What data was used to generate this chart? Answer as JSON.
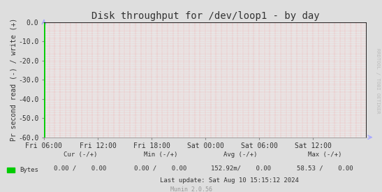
{
  "title": "Disk throughput for /dev/loop1 - by day",
  "ylabel": "Pr second read (-) / write (+)",
  "background_color": "#dedede",
  "plot_bg_color": "#e8e8e8",
  "ylim": [
    -60,
    0
  ],
  "yticks": [
    0.0,
    -10.0,
    -20.0,
    -30.0,
    -40.0,
    -50.0,
    -60.0
  ],
  "xtick_labels": [
    "Fri 06:00",
    "Fri 12:00",
    "Fri 18:00",
    "Sat 00:00",
    "Sat 06:00",
    "Sat 12:00"
  ],
  "n_xticks": 6,
  "green_color": "#00cc00",
  "legend_label": "Bytes",
  "footer_munin": "Munin 2.0.56",
  "watermark": "RRDTOOL / TOBI OETIKER",
  "title_fontsize": 10,
  "axis_fontsize": 7,
  "tick_fontsize": 7,
  "footer_fontsize": 6.5,
  "watermark_fontsize": 5,
  "top_line_color": "#000000",
  "arrow_color": "#aaaaff",
  "grid_color": "#ff4444",
  "row1_labels": [
    "Cur (-/+)",
    "Min (-/+)",
    "Avg (-/+)",
    "Max (-/+)"
  ],
  "row2_values": [
    "0.00 /    0.00",
    "0.00 /    0.00",
    "152.92m/    0.00",
    "58.53 /    0.00"
  ],
  "last_update": "Last update: Sat Aug 10 15:15:12 2024"
}
